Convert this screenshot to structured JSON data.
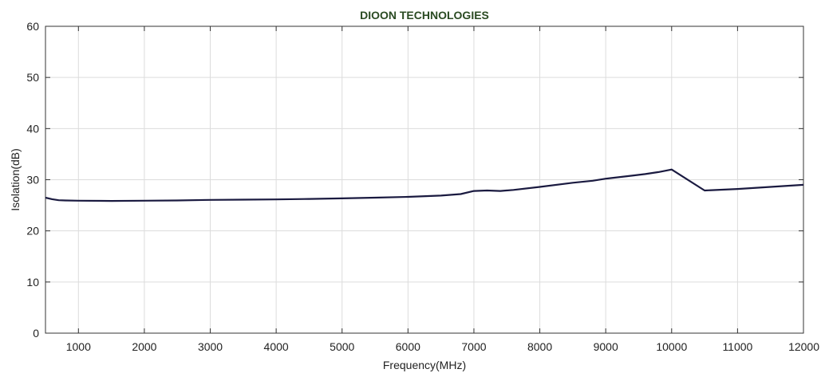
{
  "chart_data": {
    "type": "line",
    "title": "DIOON TECHNOLOGIES",
    "xlabel": "Frequency(MHz)",
    "ylabel": "Isolation(dB)",
    "xlim": [
      500,
      12000
    ],
    "ylim": [
      0,
      60
    ],
    "x_ticks": [
      1000,
      2000,
      3000,
      4000,
      5000,
      6000,
      7000,
      8000,
      9000,
      10000,
      11000,
      12000
    ],
    "y_ticks": [
      0,
      10,
      20,
      30,
      40,
      50,
      60
    ],
    "grid": true,
    "series": [
      {
        "color": "#1a1a40",
        "x": [
          500,
          600,
          700,
          800,
          1000,
          1500,
          2000,
          2500,
          3000,
          3500,
          4000,
          4500,
          5000,
          5500,
          6000,
          6500,
          6800,
          7000,
          7200,
          7400,
          7600,
          8000,
          8500,
          8800,
          9000,
          9400,
          9600,
          9800,
          10000,
          10500,
          11000,
          12000
        ],
        "values": [
          26.5,
          26.2,
          26.0,
          25.95,
          25.9,
          25.85,
          25.9,
          25.95,
          26.05,
          26.1,
          26.15,
          26.25,
          26.35,
          26.5,
          26.65,
          26.9,
          27.2,
          27.8,
          27.9,
          27.8,
          28.0,
          28.6,
          29.4,
          29.8,
          30.2,
          30.8,
          31.1,
          31.5,
          32.0,
          27.9,
          28.2,
          29.0
        ]
      }
    ]
  },
  "colors": {
    "title": "#2a4a22",
    "line": "#1a1a40",
    "grid": "#dcdcdc",
    "axis": "#333333"
  }
}
